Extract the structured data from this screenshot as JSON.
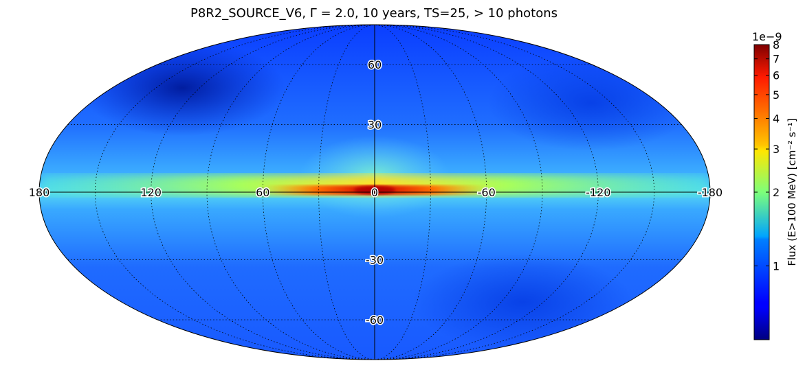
{
  "chart_data": {
    "type": "heatmap",
    "projection": "mollweide",
    "title": "P8R2_SOURCE_V6, Γ = 2.0, 10 years, TS=25, > 10 photons",
    "longitude_labels": [
      "180",
      "120",
      "60",
      "0",
      "-60",
      "-120",
      "-180"
    ],
    "longitude_values": [
      180,
      120,
      60,
      0,
      -60,
      -120,
      -180
    ],
    "latitude_labels": [
      "60",
      "30",
      "-30",
      "-60"
    ],
    "latitude_values": [
      60,
      30,
      -30,
      -60
    ],
    "grid": true,
    "colorbar": {
      "label": "Flux (E>100 MeV) [cm⁻² s⁻¹]",
      "exponent": "1e−9",
      "scale": "log",
      "range": [
        0.5,
        8
      ],
      "ticks": [
        "1",
        "2",
        "3",
        "4",
        "5",
        "6",
        "7",
        "8"
      ],
      "tick_values": [
        1,
        2,
        3,
        4,
        5,
        6,
        7,
        8
      ],
      "colormap": "jet"
    },
    "features": [
      {
        "name": "galactic plane",
        "latitude": 0,
        "flux_level": "high",
        "peak_longitude": 0
      },
      {
        "name": "low-flux region",
        "longitude": 150,
        "latitude": 60,
        "flux_level": "low"
      }
    ]
  }
}
